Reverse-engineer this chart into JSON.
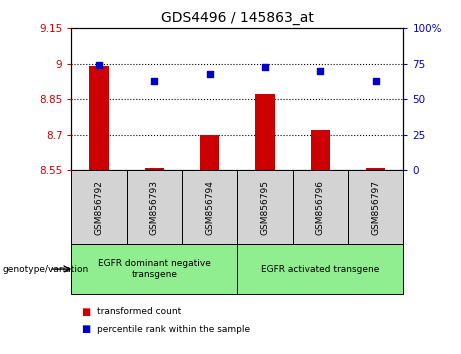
{
  "title": "GDS4496 / 145863_at",
  "samples": [
    "GSM856792",
    "GSM856793",
    "GSM856794",
    "GSM856795",
    "GSM856796",
    "GSM856797"
  ],
  "transformed_count": [
    8.99,
    8.56,
    8.7,
    8.87,
    8.72,
    8.56
  ],
  "percentile_rank": [
    74,
    63,
    68,
    73,
    70,
    63
  ],
  "bar_bottom": 8.55,
  "ylim_left": [
    8.55,
    9.15
  ],
  "ylim_right": [
    0,
    100
  ],
  "yticks_left": [
    8.55,
    8.7,
    8.85,
    9.0,
    9.15
  ],
  "ytick_labels_left": [
    "8.55",
    "8.7",
    "8.85",
    "9",
    "9.15"
  ],
  "yticks_right": [
    0,
    25,
    50,
    75,
    100
  ],
  "ytick_labels_right": [
    "0",
    "25",
    "50",
    "75",
    "100%"
  ],
  "hlines": [
    9.0,
    8.85,
    8.7
  ],
  "group1_label": "EGFR dominant negative\ntransgene",
  "group2_label": "EGFR activated transgene",
  "group1_indices": [
    0,
    1,
    2
  ],
  "group2_indices": [
    3,
    4,
    5
  ],
  "xlabel_area": "genotype/variation",
  "legend_red_label": "transformed count",
  "legend_blue_label": "percentile rank within the sample",
  "bar_color": "#cc0000",
  "dot_color": "#0000cc",
  "group_bg_color": "#90ee90",
  "sample_bg_color": "#d3d3d3",
  "axis_left_color": "#cc0000",
  "axis_right_color": "#0000cc",
  "bar_width": 0.35
}
